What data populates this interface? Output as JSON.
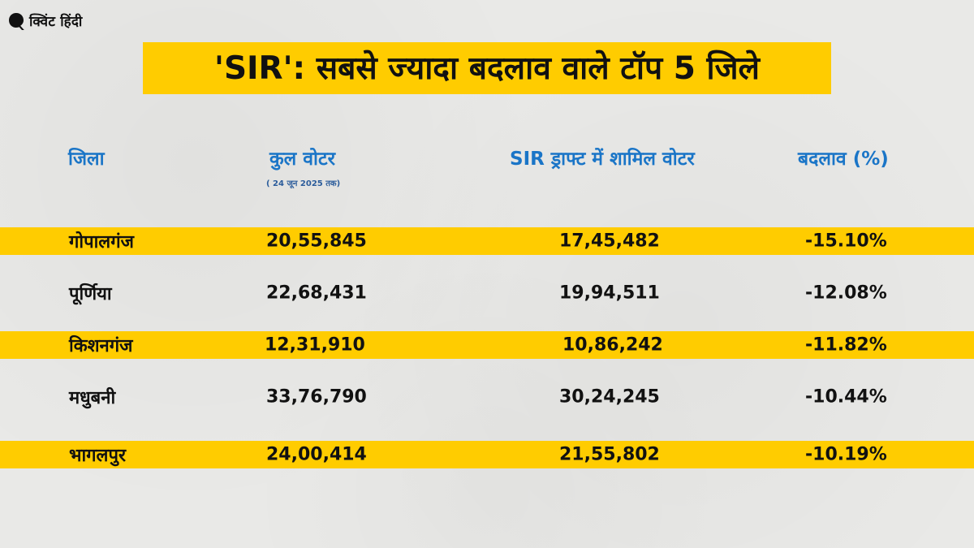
{
  "logo": {
    "text": "क्विंट हिंदी",
    "icon": "quint-q-icon"
  },
  "title": "'SIR': सबसे ज्यादा बदलाव वाले टॉप 5 जिले",
  "headers": {
    "district": "जिला",
    "total_voters": "कुल वोटर",
    "total_voters_sub": "( 24 जून 2025 तक)",
    "draft_voters": "SIR ड्राफ्ट में शामिल वोटर",
    "change": "बदलाव (%)"
  },
  "colors": {
    "highlight": "#ffcc00",
    "header_text": "#1a75c7",
    "background": "#e9e9e7"
  },
  "chart_data": {
    "type": "table",
    "title": "'SIR': सबसे ज्यादा बदलाव वाले टॉप 5 जिले",
    "columns": [
      "जिला",
      "कुल वोटर",
      "SIR ड्राफ्ट में शामिल वोटर",
      "बदलाव (%)"
    ],
    "rows": [
      [
        "गोपालगंज",
        "20,55,845",
        "17,45,482",
        "-15.10%"
      ],
      [
        "पूर्णिया",
        "22,68,431",
        "19,94,511",
        "-12.08%"
      ],
      [
        "किशनगंज",
        "12,31,910",
        "10,86,242",
        "-11.82%"
      ],
      [
        "मधुबनी",
        "33,76,790",
        "30,24,245",
        "-10.44%"
      ],
      [
        "भागलपुर",
        "24,00,414",
        "21,55,802",
        "-10.19%"
      ]
    ],
    "highlighted_rows": [
      0,
      2,
      4
    ]
  }
}
